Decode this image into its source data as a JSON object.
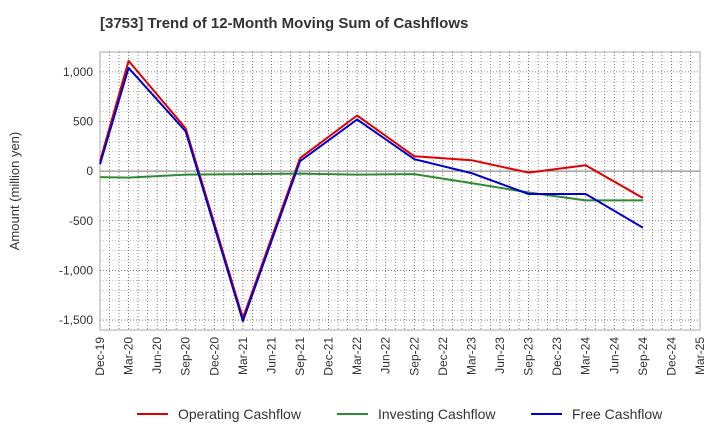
{
  "chart_data": {
    "type": "line",
    "title": "[3753]  Trend of 12-Month Moving Sum of Cashflows",
    "xlabel": "",
    "ylabel": "Amount (million yen)",
    "x_ticks": [
      "Dec-19",
      "Mar-20",
      "Jun-20",
      "Sep-20",
      "Dec-20",
      "Mar-21",
      "Jun-21",
      "Sep-21",
      "Dec-21",
      "Mar-22",
      "Jun-22",
      "Sep-22",
      "Dec-22",
      "Mar-23",
      "Jun-23",
      "Sep-23",
      "Dec-23",
      "Mar-24",
      "Jun-24",
      "Sep-24",
      "Dec-24",
      "Mar-25"
    ],
    "y_ticks": [
      1000,
      500,
      0,
      -500,
      -1000,
      -1500
    ],
    "y_tick_labels": [
      "1,000",
      "500",
      "0",
      "-500",
      "-1,000",
      "-1,500"
    ],
    "ylim": [
      -1600,
      1200
    ],
    "grid": true,
    "legend_position": "bottom",
    "series": [
      {
        "name": "Operating Cashflow",
        "color": "#e00000",
        "points": [
          [
            "Dec-19",
            100
          ],
          [
            "Mar-20",
            1110
          ],
          [
            "Sep-20",
            430
          ],
          [
            "Mar-21",
            -1480
          ],
          [
            "Sep-21",
            130
          ],
          [
            "Mar-22",
            560
          ],
          [
            "Sep-22",
            150
          ],
          [
            "Mar-23",
            110
          ],
          [
            "Sep-23",
            -15
          ],
          [
            "Mar-24",
            60
          ],
          [
            "Sep-24",
            -270
          ]
        ]
      },
      {
        "name": "Investing Cashflow",
        "color": "#2e8b2e",
        "points": [
          [
            "Dec-19",
            -60
          ],
          [
            "Mar-20",
            -65
          ],
          [
            "Sep-20",
            -35
          ],
          [
            "Mar-21",
            -30
          ],
          [
            "Sep-21",
            -25
          ],
          [
            "Mar-22",
            -35
          ],
          [
            "Sep-22",
            -30
          ],
          [
            "Mar-23",
            -120
          ],
          [
            "Sep-23",
            -215
          ],
          [
            "Mar-24",
            -295
          ],
          [
            "Sep-24",
            -295
          ]
        ]
      },
      {
        "name": "Free Cashflow",
        "color": "#0000cc",
        "points": [
          [
            "Dec-19",
            70
          ],
          [
            "Mar-20",
            1040
          ],
          [
            "Sep-20",
            400
          ],
          [
            "Mar-21",
            -1510
          ],
          [
            "Sep-21",
            100
          ],
          [
            "Mar-22",
            520
          ],
          [
            "Sep-22",
            120
          ],
          [
            "Mar-23",
            -20
          ],
          [
            "Sep-23",
            -230
          ],
          [
            "Mar-24",
            -230
          ],
          [
            "Sep-24",
            -570
          ]
        ]
      }
    ]
  }
}
